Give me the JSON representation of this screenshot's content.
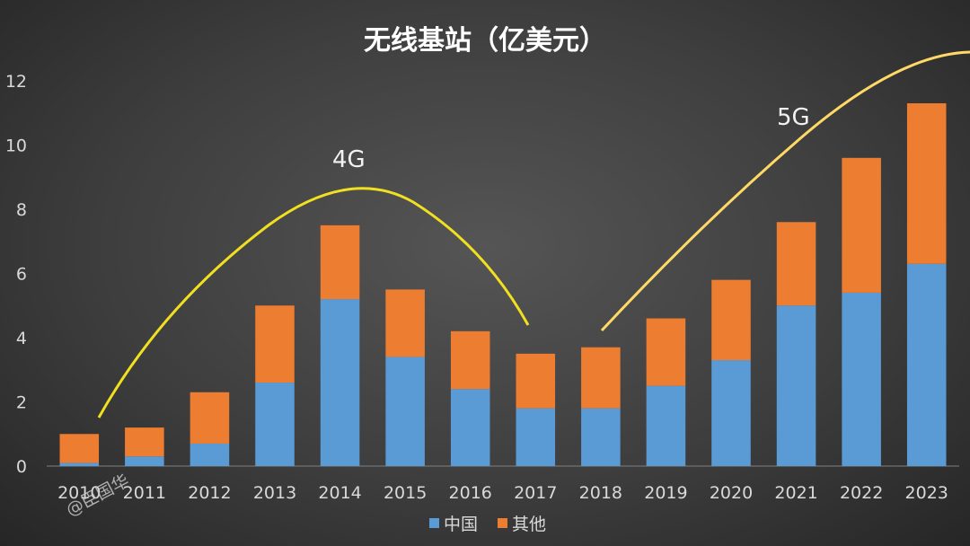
{
  "chart_data": {
    "type": "bar",
    "stacked": true,
    "title": "无线基站（亿美元）",
    "categories": [
      "2010",
      "2011",
      "2012",
      "2013",
      "2014",
      "2015",
      "2016",
      "2017",
      "2018",
      "2019",
      "2020",
      "2021",
      "2022",
      "2023"
    ],
    "series": [
      {
        "name": "中国",
        "color": "#5b9bd5",
        "values": [
          0.1,
          0.3,
          0.7,
          2.6,
          5.2,
          3.4,
          2.4,
          1.8,
          1.8,
          2.5,
          3.3,
          5.0,
          5.4,
          6.3
        ]
      },
      {
        "name": "其他",
        "color": "#ed7d31",
        "values": [
          0.9,
          0.9,
          1.6,
          2.4,
          2.3,
          2.1,
          1.8,
          1.7,
          1.9,
          2.1,
          2.5,
          2.6,
          4.2,
          5.0
        ]
      }
    ],
    "ylim": [
      0,
      12
    ],
    "yticks": [
      0,
      2,
      4,
      6,
      8,
      10,
      12
    ],
    "grid": false,
    "legend_position": "bottom",
    "annotations": [
      {
        "label": "4G",
        "color": "#f0e020"
      },
      {
        "label": "5G",
        "color": "#ffd966"
      }
    ]
  },
  "watermark": "@臣国华"
}
